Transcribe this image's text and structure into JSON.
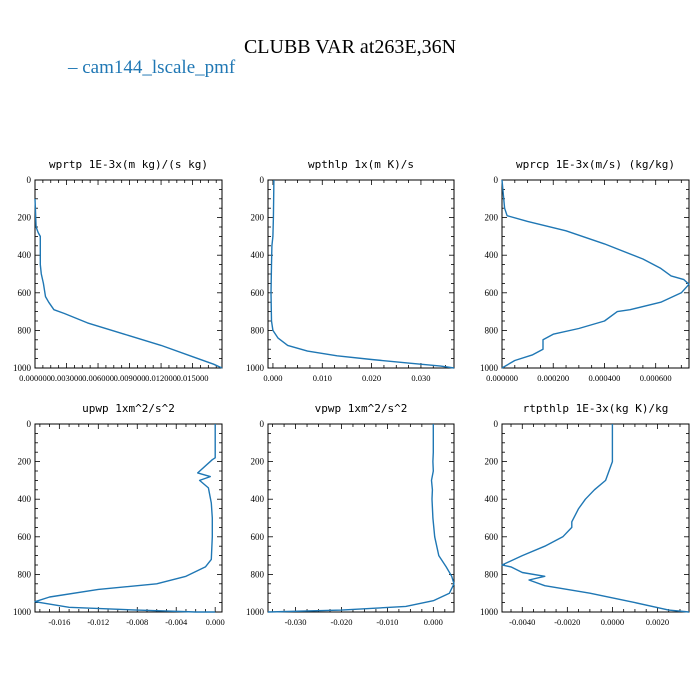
{
  "figure": {
    "title": "CLUBB VAR at263E,36N",
    "legend_label": "cam144_lscale_pmf",
    "series_color": "#1f77b4"
  },
  "chart_data": [
    {
      "type": "line",
      "title": "wprtp  1E-3x(m kg)/(s kg)",
      "xlim": [
        0,
        0.0178
      ],
      "ylim": [
        1000,
        0
      ],
      "y_ticks": [
        0,
        200,
        400,
        600,
        800,
        1000
      ],
      "y_tick_labels": [
        "0",
        "200",
        "400",
        "600",
        "800",
        "1000"
      ],
      "x_ticks": [
        0,
        0.003,
        0.006,
        0.009,
        0.012,
        0.015
      ],
      "x_tick_labels": [
        "0.000000",
        "0.003000",
        "0.006000",
        "0.009000",
        "0.012000",
        "0.015000"
      ],
      "series": [
        {
          "x": [
            0.0,
            0.0001,
            0.0003,
            0.0005,
            0.0005,
            0.0005,
            0.0006,
            0.0008,
            0.001,
            0.0013,
            0.0018,
            0.0028,
            0.005,
            0.0085,
            0.012,
            0.015,
            0.017,
            0.0178
          ],
          "y": [
            100,
            250,
            280,
            300,
            400,
            450,
            500,
            550,
            620,
            650,
            690,
            710,
            760,
            820,
            880,
            940,
            980,
            1000
          ]
        }
      ]
    },
    {
      "type": "line",
      "title": "wpthlp  1x(m K)/s",
      "xlim": [
        -0.001,
        0.0367
      ],
      "ylim": [
        1000,
        0
      ],
      "y_ticks": [
        0,
        200,
        400,
        600,
        800,
        1000
      ],
      "y_tick_labels": [
        "0",
        "200",
        "400",
        "600",
        "800",
        "1000"
      ],
      "x_ticks": [
        0,
        0.01,
        0.02,
        0.03
      ],
      "x_tick_labels": [
        "0.000",
        "0.010",
        "0.020",
        "0.030"
      ],
      "series": [
        {
          "x": [
            0.0002,
            0.0001,
            0.0,
            -0.0002,
            -0.0003,
            -0.0004,
            -0.0003,
            0.0,
            0.001,
            0.003,
            0.007,
            0.013,
            0.02,
            0.028,
            0.034,
            0.0367
          ],
          "y": [
            0,
            200,
            300,
            350,
            450,
            600,
            750,
            800,
            840,
            880,
            910,
            935,
            955,
            975,
            990,
            1000
          ]
        }
      ]
    },
    {
      "type": "line",
      "title": "wprcp  1E-3x(m/s) (kg/kg)",
      "xlim": [
        0,
        0.00073
      ],
      "ylim": [
        1000,
        0
      ],
      "y_ticks": [
        0,
        200,
        400,
        600,
        800,
        1000
      ],
      "y_tick_labels": [
        "0",
        "200",
        "400",
        "600",
        "800",
        "1000"
      ],
      "x_ticks": [
        0,
        0.0002,
        0.0004,
        0.0006
      ],
      "x_tick_labels": [
        "0.000000",
        "0.000200",
        "0.000400",
        "0.000600"
      ],
      "series": [
        {
          "x": [
            0.0,
            1e-05,
            2e-05,
            0.0001,
            0.00025,
            0.0004,
            0.00055,
            0.00062,
            0.00066,
            0.00071,
            0.00073,
            0.0007,
            0.00062,
            0.0005,
            0.00045,
            0.0004,
            0.0003,
            0.0002,
            0.00016,
            0.00016,
            0.00012,
            5e-05,
            0.0
          ],
          "y": [
            0,
            150,
            190,
            220,
            270,
            340,
            420,
            470,
            510,
            530,
            555,
            600,
            650,
            690,
            700,
            750,
            790,
            820,
            850,
            900,
            930,
            960,
            1000
          ]
        }
      ]
    },
    {
      "type": "line",
      "title": "upwp  1xm^2/s^2",
      "xlim": [
        -0.0185,
        0.0007
      ],
      "ylim": [
        1000,
        0
      ],
      "y_ticks": [
        0,
        200,
        400,
        600,
        800,
        1000
      ],
      "y_tick_labels": [
        "0",
        "200",
        "400",
        "600",
        "800",
        "1000"
      ],
      "x_ticks": [
        -0.016,
        -0.012,
        -0.008,
        -0.004,
        0.0
      ],
      "x_tick_labels": [
        "-0.016",
        "-0.012",
        "-0.008",
        "-0.004",
        "0.000"
      ],
      "series": [
        {
          "x": [
            0.0,
            0.0,
            -0.0003,
            -0.0018,
            -0.0005,
            -0.0016,
            -0.0007,
            -0.0004,
            -0.0003,
            -0.0003,
            -0.0004,
            -0.001,
            -0.003,
            -0.006,
            -0.012,
            -0.017,
            -0.0185,
            -0.015,
            -0.008,
            -0.002,
            0.0
          ],
          "y": [
            0,
            180,
            190,
            260,
            280,
            300,
            340,
            420,
            500,
            600,
            720,
            760,
            810,
            850,
            880,
            920,
            945,
            975,
            990,
            1000,
            1000
          ]
        }
      ]
    },
    {
      "type": "line",
      "title": "vpwp  1xm^2/s^2",
      "xlim": [
        -0.036,
        0.0045
      ],
      "ylim": [
        1000,
        0
      ],
      "y_ticks": [
        0,
        200,
        400,
        600,
        800,
        1000
      ],
      "y_tick_labels": [
        "0",
        "200",
        "400",
        "600",
        "800",
        "1000"
      ],
      "x_ticks": [
        -0.03,
        -0.02,
        -0.01,
        0.0
      ],
      "x_tick_labels": [
        "-0.030",
        "-0.020",
        "-0.010",
        "0.000"
      ],
      "series": [
        {
          "x": [
            0.0,
            0.0,
            -0.0001,
            0.0,
            -0.0004,
            -0.0002,
            -0.0003,
            -0.0001,
            0.0003,
            0.0012,
            0.0028,
            0.004,
            0.0045,
            0.0035,
            0.0,
            -0.006,
            -0.02,
            -0.036
          ],
          "y": [
            0,
            150,
            200,
            250,
            300,
            350,
            400,
            500,
            600,
            700,
            760,
            810,
            850,
            900,
            940,
            970,
            990,
            1000
          ]
        }
      ]
    },
    {
      "type": "line",
      "title": "rtpthlp  1E-3x(kg K)/kg",
      "xlim": [
        -0.0049,
        0.0034
      ],
      "ylim": [
        1000,
        0
      ],
      "y_ticks": [
        0,
        200,
        400,
        600,
        800,
        1000
      ],
      "y_tick_labels": [
        "0",
        "200",
        "400",
        "600",
        "800",
        "1000"
      ],
      "x_ticks": [
        -0.004,
        -0.002,
        0.0,
        0.002
      ],
      "x_tick_labels": [
        "-0.0040",
        "-0.0020",
        "0.0000",
        "0.0020"
      ],
      "series": [
        {
          "x": [
            0.0,
            0.0,
            -0.0003,
            -0.0008,
            -0.0012,
            -0.0015,
            -0.0018,
            -0.0018,
            -0.0022,
            -0.003,
            -0.004,
            -0.0049,
            -0.0045,
            -0.004,
            -0.003,
            -0.0037,
            -0.003,
            -0.001,
            0.001,
            0.0025,
            0.0034
          ],
          "y": [
            0,
            200,
            300,
            350,
            400,
            450,
            520,
            550,
            600,
            650,
            700,
            750,
            760,
            790,
            810,
            830,
            860,
            900,
            950,
            990,
            1000
          ]
        }
      ]
    }
  ]
}
